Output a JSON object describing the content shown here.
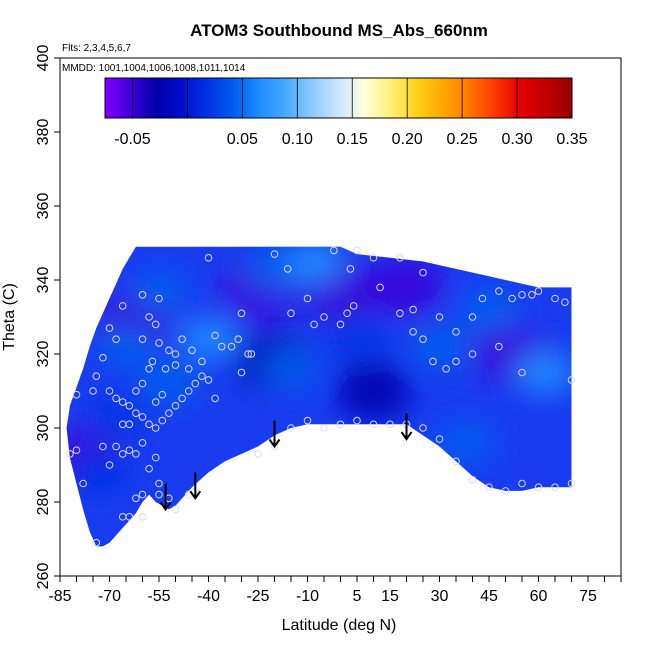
{
  "chart_data": {
    "type": "heatmap",
    "title": "ATOM3 Southbound MS_Abs_660nm",
    "flights_note": "Flts: 2,3,4,5,6,7",
    "dates_note": "MMDD: 1001,1004,1006,1008,1011,1014",
    "xlabel": "Latitude (deg N)",
    "ylabel": "Theta (C)",
    "xlim": [
      -85,
      85
    ],
    "ylim": [
      260,
      400
    ],
    "x_ticks": [
      -85,
      -70,
      -55,
      -40,
      -25,
      -10,
      5,
      15,
      30,
      45,
      60,
      75
    ],
    "y_ticks": [
      260,
      280,
      300,
      320,
      340,
      360,
      380,
      400
    ],
    "colorbar": {
      "range": [
        -0.075,
        0.35
      ],
      "tick_values": [
        -0.05,
        0.05,
        0.1,
        0.15,
        0.2,
        0.25,
        0.3,
        0.35
      ],
      "tick_labels": [
        "-0.05",
        "0.05",
        "0.10",
        "0.15",
        "0.20",
        "0.25",
        "0.30",
        "0.35"
      ],
      "colors": [
        "#7f00ff",
        "#3d00d9",
        "#0000aa",
        "#0010d0",
        "#0033e6",
        "#0060f0",
        "#1f8fff",
        "#49aaff",
        "#8fcaff",
        "#c9e6ff",
        "#ffffdd",
        "#fff07a",
        "#ffd21a",
        "#ffa800",
        "#ff7a00",
        "#ff3a00",
        "#e30000",
        "#c20000",
        "#990000"
      ]
    },
    "field_color": "#1a3cf0",
    "domain_boundary": {
      "top": [
        [
          -80,
          311
        ],
        [
          -78,
          316
        ],
        [
          -76,
          322
        ],
        [
          -74,
          327
        ],
        [
          -72,
          331
        ],
        [
          -70,
          335
        ],
        [
          -68,
          339
        ],
        [
          -66,
          343
        ],
        [
          -64,
          346
        ],
        [
          -62,
          349
        ],
        [
          -25,
          349
        ],
        [
          -20,
          349
        ],
        [
          -10,
          349
        ],
        [
          0,
          349
        ],
        [
          5,
          347
        ],
        [
          15,
          346
        ],
        [
          25,
          345
        ],
        [
          35,
          343
        ],
        [
          45,
          341
        ],
        [
          50,
          340
        ],
        [
          55,
          339
        ],
        [
          60,
          338
        ],
        [
          66,
          338
        ],
        [
          70,
          338
        ]
      ],
      "bottom": [
        [
          70,
          284
        ],
        [
          66,
          284
        ],
        [
          60,
          284
        ],
        [
          55,
          283
        ],
        [
          50,
          283
        ],
        [
          45,
          284
        ],
        [
          40,
          287
        ],
        [
          35,
          291
        ],
        [
          30,
          295
        ],
        [
          25,
          298
        ],
        [
          20,
          301
        ],
        [
          15,
          301
        ],
        [
          10,
          301
        ],
        [
          5,
          301
        ],
        [
          0,
          301
        ],
        [
          -5,
          301
        ],
        [
          -10,
          301
        ],
        [
          -15,
          300
        ],
        [
          -20,
          298
        ],
        [
          -25,
          295
        ],
        [
          -30,
          293
        ],
        [
          -35,
          291
        ],
        [
          -40,
          288
        ],
        [
          -45,
          284
        ],
        [
          -48,
          281
        ],
        [
          -50,
          279
        ],
        [
          -52,
          278
        ],
        [
          -54,
          279
        ],
        [
          -56,
          280
        ],
        [
          -58,
          282
        ],
        [
          -60,
          280
        ],
        [
          -62,
          277
        ],
        [
          -64,
          275
        ],
        [
          -66,
          273
        ],
        [
          -68,
          271
        ],
        [
          -70,
          269
        ],
        [
          -72,
          268
        ],
        [
          -74,
          268
        ],
        [
          -76,
          272
        ],
        [
          -78,
          278
        ],
        [
          -80,
          285
        ],
        [
          -82,
          292
        ],
        [
          -83,
          300
        ],
        [
          -82,
          306
        ]
      ]
    },
    "field_blobs": [
      {
        "x": -20,
        "y": 343,
        "value": 0.05
      },
      {
        "x": -55,
        "y": 337,
        "value": 0.04
      },
      {
        "x": -40,
        "y": 324,
        "value": 0.06
      },
      {
        "x": -65,
        "y": 322,
        "value": 0.04
      },
      {
        "x": -68,
        "y": 303,
        "value": 0.03
      },
      {
        "x": -52,
        "y": 312,
        "value": 0.05
      },
      {
        "x": 62,
        "y": 315,
        "value": 0.07
      },
      {
        "x": 45,
        "y": 332,
        "value": 0.05
      },
      {
        "x": 30,
        "y": 322,
        "value": 0.04
      },
      {
        "x": 38,
        "y": 296,
        "value": 0.04
      },
      {
        "x": -15,
        "y": 316,
        "value": 0.04
      },
      {
        "x": 5,
        "y": 325,
        "value": 0.03
      },
      {
        "x": -73,
        "y": 288,
        "value": 0.03
      },
      {
        "x": -8,
        "y": 345,
        "value": 0.06
      }
    ],
    "field_dark_areas": [
      {
        "x": -25,
        "y": 337,
        "value": -0.05
      },
      {
        "x": 0,
        "y": 337,
        "value": -0.05
      },
      {
        "x": 20,
        "y": 338,
        "value": -0.06
      },
      {
        "x": 52,
        "y": 320,
        "value": -0.05
      },
      {
        "x": -20,
        "y": 318,
        "value": -0.03
      },
      {
        "x": -62,
        "y": 330,
        "value": -0.04
      },
      {
        "x": -78,
        "y": 292,
        "value": -0.04
      },
      {
        "x": 10,
        "y": 310,
        "value": -0.02
      }
    ],
    "sample_points": [
      [
        -40,
        346
      ],
      [
        -30,
        331
      ],
      [
        -15,
        331
      ],
      [
        -16,
        343
      ],
      [
        -10,
        335
      ],
      [
        -8,
        328
      ],
      [
        -2,
        348
      ],
      [
        5,
        348
      ],
      [
        3,
        343
      ],
      [
        10,
        346
      ],
      [
        18,
        346
      ],
      [
        25,
        342
      ],
      [
        22,
        332
      ],
      [
        18,
        331
      ],
      [
        12,
        338
      ],
      [
        4,
        333
      ],
      [
        2,
        331
      ],
      [
        0,
        328
      ],
      [
        -5,
        330
      ],
      [
        -20,
        347
      ],
      [
        -60,
        336
      ],
      [
        -66,
        333
      ],
      [
        -68,
        324
      ],
      [
        -70,
        327
      ],
      [
        -58,
        330
      ],
      [
        -56,
        328
      ],
      [
        -55,
        323
      ],
      [
        -52,
        321
      ],
      [
        -50,
        320
      ],
      [
        -48,
        324
      ],
      [
        -45,
        321
      ],
      [
        -42,
        318
      ],
      [
        -38,
        325
      ],
      [
        -36,
        322
      ],
      [
        -33,
        322
      ],
      [
        -31,
        324
      ],
      [
        -28,
        320
      ],
      [
        -27,
        320
      ],
      [
        -30,
        315
      ],
      [
        -72,
        319
      ],
      [
        -74,
        314
      ],
      [
        -70,
        310
      ],
      [
        -68,
        308
      ],
      [
        -66,
        307
      ],
      [
        -64,
        306
      ],
      [
        -62,
        304
      ],
      [
        -60,
        303
      ],
      [
        -58,
        301
      ],
      [
        -56,
        300
      ],
      [
        -54,
        302
      ],
      [
        -52,
        304
      ],
      [
        -50,
        306
      ],
      [
        -48,
        308
      ],
      [
        -46,
        310
      ],
      [
        -44,
        312
      ],
      [
        -42,
        314
      ],
      [
        -40,
        313
      ],
      [
        -38,
        308
      ],
      [
        -66,
        301
      ],
      [
        -64,
        301
      ],
      [
        -68,
        295
      ],
      [
        -66,
        293
      ],
      [
        -64,
        294
      ],
      [
        -62,
        293
      ],
      [
        -60,
        296
      ],
      [
        -58,
        289
      ],
      [
        -56,
        292
      ],
      [
        -55,
        285
      ],
      [
        -60,
        282
      ],
      [
        -62,
        281
      ],
      [
        -64,
        276
      ],
      [
        -66,
        276
      ],
      [
        -60,
        276
      ],
      [
        -55,
        282
      ],
      [
        -52,
        281
      ],
      [
        -50,
        278
      ],
      [
        -46,
        282
      ],
      [
        -44,
        283
      ],
      [
        -80,
        309
      ],
      [
        -80,
        294
      ],
      [
        -78,
        285
      ],
      [
        -75,
        310
      ],
      [
        -72,
        295
      ],
      [
        -70,
        290
      ],
      [
        -74,
        269
      ],
      [
        -82,
        293
      ],
      [
        -25,
        293
      ],
      [
        -20,
        295
      ],
      [
        -15,
        300
      ],
      [
        -10,
        302
      ],
      [
        -5,
        300
      ],
      [
        0,
        301
      ],
      [
        5,
        302
      ],
      [
        10,
        301
      ],
      [
        15,
        301
      ],
      [
        20,
        301
      ],
      [
        25,
        300
      ],
      [
        30,
        297
      ],
      [
        35,
        291
      ],
      [
        40,
        286
      ],
      [
        45,
        284
      ],
      [
        50,
        283
      ],
      [
        55,
        285
      ],
      [
        60,
        284
      ],
      [
        65,
        284
      ],
      [
        70,
        285
      ],
      [
        30,
        330
      ],
      [
        35,
        326
      ],
      [
        40,
        330
      ],
      [
        43,
        335
      ],
      [
        48,
        337
      ],
      [
        52,
        335
      ],
      [
        55,
        336
      ],
      [
        58,
        336
      ],
      [
        60,
        337
      ],
      [
        65,
        335
      ],
      [
        68,
        334
      ],
      [
        70,
        313
      ],
      [
        55,
        315
      ],
      [
        48,
        322
      ],
      [
        40,
        320
      ],
      [
        35,
        318
      ],
      [
        32,
        316
      ],
      [
        28,
        318
      ],
      [
        25,
        324
      ],
      [
        22,
        326
      ],
      [
        -60,
        312
      ],
      [
        -62,
        310
      ],
      [
        -58,
        316
      ],
      [
        -57,
        318
      ],
      [
        -53,
        316
      ],
      [
        -50,
        317
      ],
      [
        -46,
        316
      ],
      [
        -56,
        307
      ],
      [
        -54,
        309
      ],
      [
        -60,
        324
      ],
      [
        -55,
        335
      ]
    ],
    "arrows": [
      {
        "x": -53,
        "y_from": 285,
        "y_to": 278
      },
      {
        "x": -44,
        "y_from": 288,
        "y_to": 281
      },
      {
        "x": -20,
        "y_from": 302,
        "y_to": 295
      },
      {
        "x": 20,
        "y_from": 304,
        "y_to": 297
      }
    ]
  }
}
